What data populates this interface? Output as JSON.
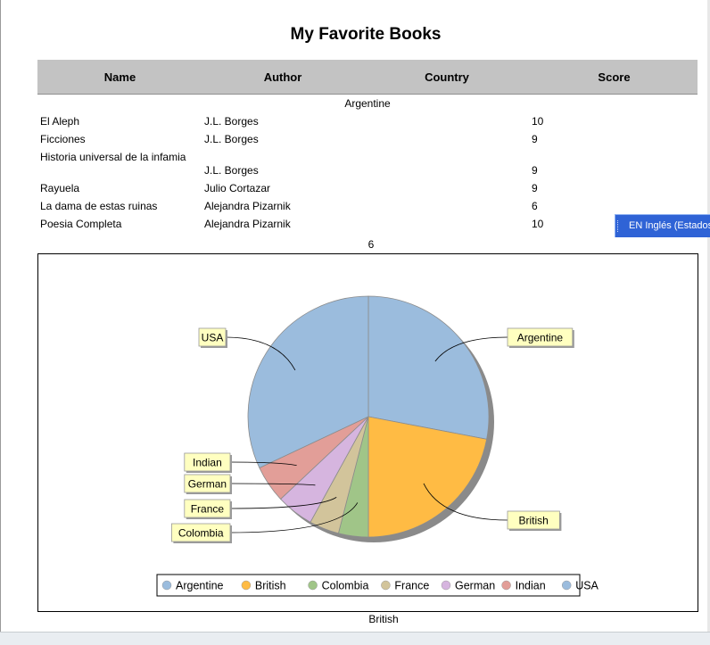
{
  "report": {
    "title": "My Favorite Books",
    "columns": [
      "Name",
      "Author",
      "Country",
      "Score"
    ],
    "group": "Argentine",
    "rows": [
      {
        "name": "El Aleph",
        "author": "J.L. Borges",
        "score": "10"
      },
      {
        "name": "Ficciones",
        "author": "J.L. Borges",
        "score": "9"
      },
      {
        "name": "Historia universal de la infamia",
        "author": "J.L. Borges",
        "score": "9"
      },
      {
        "name": "Rayuela",
        "author": "Julio Cortazar",
        "score": "9"
      },
      {
        "name": "La dama de estas ruinas",
        "author": "Alejandra Pizarnik",
        "score": "6"
      },
      {
        "name": "Poesia Completa",
        "author": "Alejandra Pizarnik",
        "score": "10"
      }
    ],
    "group_count": "6",
    "next_group": "British"
  },
  "language_bar": {
    "label": "EN Inglés (Estados"
  },
  "chart_data": {
    "type": "pie",
    "categories": [
      "Argentine",
      "British",
      "Colombia",
      "France",
      "German",
      "Indian",
      "USA"
    ],
    "values": [
      28,
      22,
      4,
      4,
      5,
      5,
      32
    ],
    "colors": [
      "#9bbcdd",
      "#ffbb44",
      "#a0c588",
      "#d2c49b",
      "#d6b5df",
      "#e29e98",
      "#9bbcdd"
    ],
    "legend": [
      "Argentine",
      "British",
      "Colombia",
      "France",
      "German",
      "Indian",
      "USA"
    ],
    "legend_position": "bottom",
    "slice_labels": [
      "Argentine",
      "British",
      "Colombia",
      "France",
      "German",
      "Indian",
      "USA"
    ]
  }
}
